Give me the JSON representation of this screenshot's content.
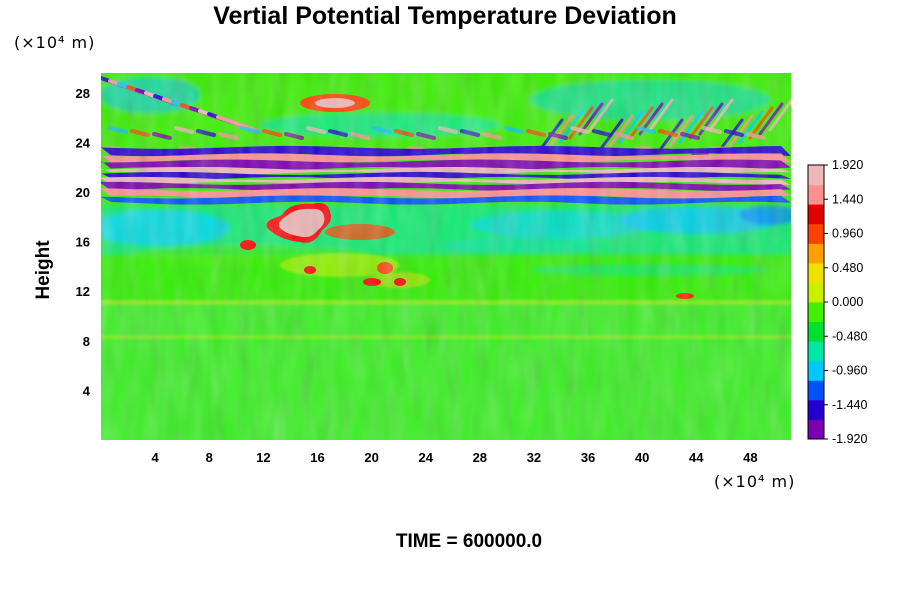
{
  "chart_data": {
    "type": "heatmap",
    "title": "Vertial Potential Temperature Deviation",
    "ylabel": "Height",
    "xlabel": "",
    "x_scale_label": "(×10⁴ m)",
    "y_scale_label": "(×10⁴ m)",
    "xlim": [
      0,
      51
    ],
    "ylim": [
      0,
      29.6
    ],
    "x_ticks": [
      4,
      8,
      12,
      16,
      20,
      24,
      28,
      32,
      36,
      40,
      44,
      48
    ],
    "y_ticks": [
      4,
      8,
      12,
      16,
      20,
      24,
      28
    ],
    "colorbar": {
      "min": -1.92,
      "max": 1.92,
      "tick_labels": [
        "1.920",
        "1.440",
        "0.960",
        "0.480",
        "0.000",
        "-0.480",
        "-0.960",
        "-1.440",
        "-1.920"
      ],
      "colors": [
        "#7a00b0",
        "#2200d0",
        "#0050ff",
        "#00c8ff",
        "#00e8a8",
        "#00e030",
        "#40f000",
        "#c8f000",
        "#f0e000",
        "#ffa000",
        "#ff4000",
        "#e00000",
        "#ff9090",
        "#f0b8b8"
      ]
    },
    "features": [
      {
        "x": [
          0,
          51
        ],
        "y": [
          19.5,
          23.5
        ],
        "value": "alternating -1.92 / +1.92 bands"
      },
      {
        "x": [
          13,
          18
        ],
        "y": [
          16,
          19
        ],
        "value": 1.92
      },
      {
        "x": [
          14,
          20
        ],
        "y": [
          27,
          28.5
        ],
        "value": 1.2
      },
      {
        "x": [
          42,
          44
        ],
        "y": [
          11.6,
          12
        ],
        "value": 1.4
      },
      {
        "x": [
          0,
          51
        ],
        "y": [
          0,
          11
        ],
        "value": 0.0
      }
    ],
    "grid": false,
    "legend": "colorbar-right"
  },
  "footer": {
    "time_label": "TIME = 600000.0"
  }
}
